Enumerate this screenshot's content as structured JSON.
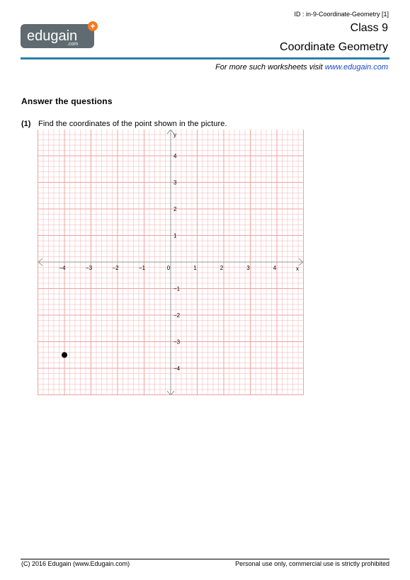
{
  "header": {
    "doc_id": "ID : in-9-Coordinate-Geometry [1]",
    "class_title": "Class 9",
    "subject_title": "Coordinate Geometry",
    "tagline_prefix": "For more such worksheets visit ",
    "tagline_link": "www.edugain.com"
  },
  "logo": {
    "brand": "edugain",
    "suffix": ".com",
    "plus": "+",
    "bg_color": "#5f6b70",
    "accent_color": "#f47b20"
  },
  "section_title": "Answer the questions",
  "question": {
    "number": "(1)",
    "text": "Find the coordinates of the point shown in the picture."
  },
  "chart_data": {
    "type": "scatter",
    "xlim": [
      -5,
      5
    ],
    "ylim": [
      -5,
      5
    ],
    "x_ticks": [
      -4,
      -3,
      -2,
      -1,
      0,
      1,
      2,
      3,
      4
    ],
    "y_ticks": [
      4,
      3,
      2,
      1,
      0,
      -1,
      -2,
      -3,
      -4
    ],
    "x_axis_label": "x",
    "y_axis_label": "y",
    "grid": true,
    "grid_color": "#f0a0a0",
    "points": [
      {
        "x": -4,
        "y": -3.5
      }
    ]
  },
  "footer": {
    "left": "(C) 2016 Edugain (www.Edugain.com)",
    "right": "Personal use only, commercial use is strictly prohibited"
  }
}
